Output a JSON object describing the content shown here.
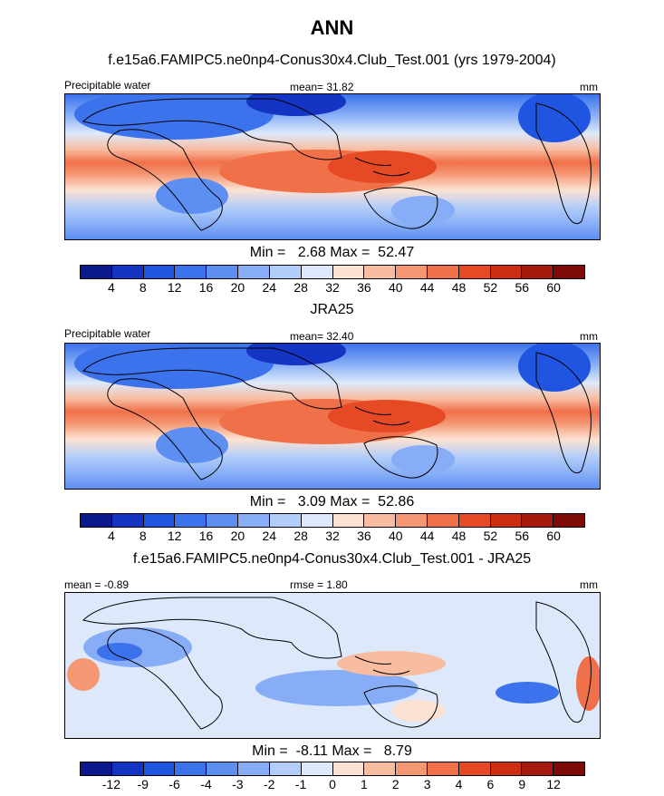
{
  "figure_title": "ANN",
  "panels": [
    {
      "subtitle": "f.e15a6.FAMIPC5.ne0np4-Conus30x4.Club_Test.001 (yrs 1979-2004)",
      "left_label": "Precipitable water",
      "center_label": "mean=  31.82",
      "right_label": "mm",
      "minmax": "Min =   2.68 Max =  52.47"
    },
    {
      "subtitle": "JRA25",
      "left_label": "Precipitable water",
      "center_label": "mean=  32.40",
      "right_label": "mm",
      "minmax": "Min =   3.09 Max =  52.86"
    },
    {
      "subtitle": "f.e15a6.FAMIPC5.ne0np4-Conus30x4.Club_Test.001 - JRA25",
      "left_label": "mean =  -0.89",
      "center_label": "rmse =   1.80",
      "right_label": "mm",
      "minmax": "Min =  -8.11 Max =   8.79"
    }
  ],
  "colorbars": {
    "absolute": {
      "labels": [
        "4",
        "8",
        "12",
        "16",
        "20",
        "24",
        "28",
        "32",
        "36",
        "40",
        "44",
        "48",
        "52",
        "56",
        "60"
      ],
      "colors": [
        "#0a1a8c",
        "#1434c4",
        "#1f55e0",
        "#3c72ec",
        "#5d8ef2",
        "#86adf6",
        "#b2cdf9",
        "#dde9fb",
        "#fce2d2",
        "#f8bda1",
        "#f49772",
        "#f0704a",
        "#e64a25",
        "#cc2e13",
        "#a51a0c",
        "#7d0a06"
      ]
    },
    "difference": {
      "labels": [
        "-12",
        "-9",
        "-6",
        "-4",
        "-3",
        "-2",
        "-1",
        "0",
        "1",
        "2",
        "3",
        "4",
        "6",
        "9",
        "12"
      ],
      "colors": [
        "#0a1a8c",
        "#1434c4",
        "#1f55e0",
        "#3c72ec",
        "#5d8ef2",
        "#86adf6",
        "#b2cdf9",
        "#dde9fb",
        "#fce2d2",
        "#f8bda1",
        "#f49772",
        "#f0704a",
        "#e64a25",
        "#cc2e13",
        "#a51a0c",
        "#7d0a06"
      ]
    }
  }
}
